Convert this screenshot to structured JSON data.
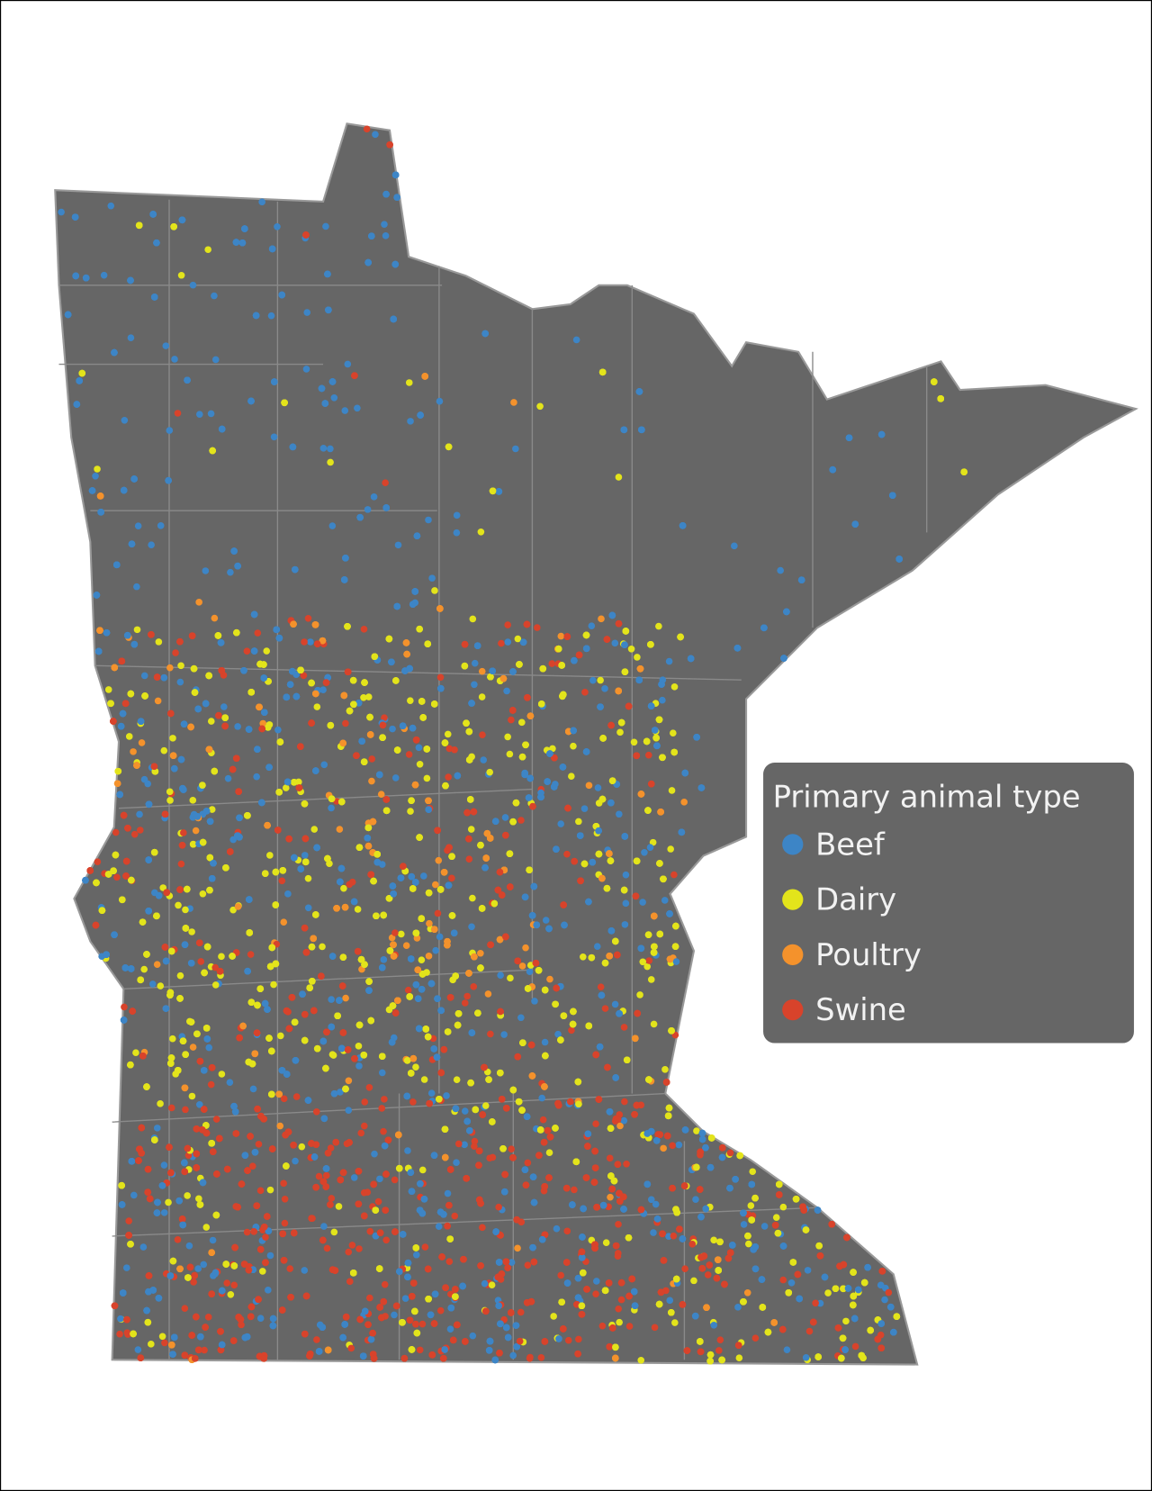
{
  "legend": {
    "title": "Primary animal type",
    "items": [
      {
        "label": "Beef",
        "color": "#3d85c6"
      },
      {
        "label": "Dairy",
        "color": "#e3e41b"
      },
      {
        "label": "Poultry",
        "color": "#f4922c"
      },
      {
        "label": "Swine",
        "color": "#d8432b"
      }
    ]
  }
}
